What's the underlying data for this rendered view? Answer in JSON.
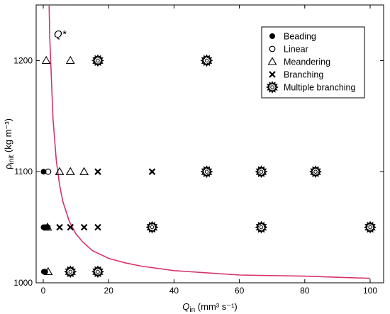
{
  "chart_data": {
    "type": "scatter",
    "xlabel": {
      "main": "Q",
      "sub": "in",
      "units": " (mm³ s⁻¹)"
    },
    "ylabel": {
      "main": "ρ",
      "sub": "init",
      "units": " (kg m⁻³)"
    },
    "xlim": [
      0,
      100
    ],
    "ylim": [
      1000,
      1250
    ],
    "xticks": [
      0,
      20,
      40,
      60,
      80,
      100
    ],
    "yticks": [
      1000,
      1100,
      1200
    ],
    "curve": {
      "label": "Q*",
      "color": "#d6336c",
      "points": [
        [
          0.5,
          1880
        ],
        [
          1,
          1440
        ],
        [
          1.5,
          1293
        ],
        [
          2,
          1220
        ],
        [
          3,
          1147
        ],
        [
          4,
          1110
        ],
        [
          5,
          1088
        ],
        [
          6,
          1073
        ],
        [
          8,
          1055
        ],
        [
          10,
          1044
        ],
        [
          12,
          1037
        ],
        [
          15,
          1029
        ],
        [
          20,
          1022
        ],
        [
          25,
          1018
        ],
        [
          30,
          1015
        ],
        [
          40,
          1011
        ],
        [
          50,
          1009
        ],
        [
          60,
          1007
        ],
        [
          80,
          1006
        ],
        [
          100,
          1004
        ]
      ]
    },
    "legend": {
      "position": "top-right",
      "entries": [
        {
          "marker": "filled-circle",
          "label": "Beading"
        },
        {
          "marker": "open-circle",
          "label": "Linear"
        },
        {
          "marker": "triangle",
          "label": "Meandering"
        },
        {
          "marker": "cross",
          "label": "Branching"
        },
        {
          "marker": "star",
          "label": "Multiple branching"
        }
      ]
    },
    "series": [
      {
        "name": "Beading",
        "marker": "filled-circle",
        "points": [
          [
            0.1,
            1100
          ],
          [
            0.1,
            1050
          ],
          [
            0.4,
            1050
          ],
          [
            0.7,
            1050
          ],
          [
            1.0,
            1050
          ],
          [
            1.4,
            1050
          ],
          [
            0.2,
            1010
          ],
          [
            0.6,
            1010
          ]
        ]
      },
      {
        "name": "Linear",
        "marker": "open-circle",
        "points": [
          [
            1.5,
            1100
          ]
        ]
      },
      {
        "name": "Meandering",
        "marker": "triangle",
        "points": [
          [
            0.9,
            1200
          ],
          [
            8.3,
            1200
          ],
          [
            5,
            1100
          ],
          [
            8.3,
            1100
          ],
          [
            12.5,
            1100
          ],
          [
            1.3,
            1050
          ],
          [
            1.5,
            1010
          ]
        ]
      },
      {
        "name": "Branching",
        "marker": "cross",
        "points": [
          [
            16.7,
            1100
          ],
          [
            33.3,
            1100
          ],
          [
            5,
            1050
          ],
          [
            8.3,
            1050
          ],
          [
            12.5,
            1050
          ],
          [
            16.7,
            1050
          ],
          [
            8.3,
            1010
          ]
        ]
      },
      {
        "name": "Multiple branching",
        "marker": "star",
        "points": [
          [
            16.7,
            1200
          ],
          [
            50,
            1200
          ],
          [
            50,
            1100
          ],
          [
            66.7,
            1100
          ],
          [
            83.3,
            1100
          ],
          [
            33.3,
            1050
          ],
          [
            66.7,
            1050
          ],
          [
            100,
            1050
          ],
          [
            8.3,
            1010
          ],
          [
            16.7,
            1010
          ]
        ]
      }
    ]
  }
}
